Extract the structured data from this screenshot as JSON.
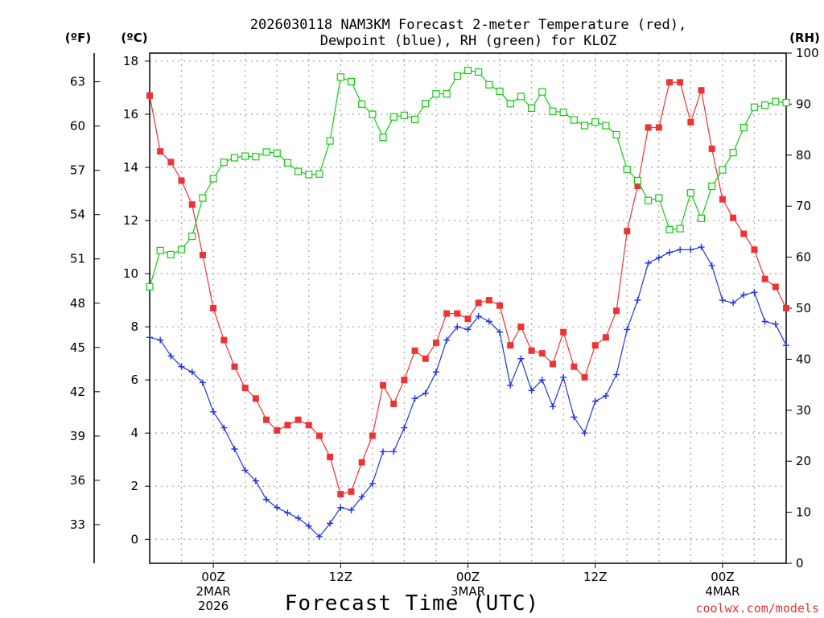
{
  "chart_data": {
    "type": "line",
    "title_line1": "2026030118 NAM3KM Forecast 2-meter Temperature (red),",
    "title_line2": "Dewpoint (blue), RH (green) for KLOZ",
    "unit_f": "(ºF)",
    "unit_c": "(ºC)",
    "unit_rh": "(RH)",
    "xlabel": "Forecast Time (UTC)",
    "credit": "coolwx.com/models",
    "x_hours_range": [
      0,
      60
    ],
    "y_celsius_range": [
      -0.9,
      18.3
    ],
    "y_rh_range": [
      0,
      100
    ],
    "y_left_c_ticks": [
      "0",
      "2",
      "4",
      "6",
      "8",
      "10",
      "12",
      "14",
      "16",
      "18"
    ],
    "y_left_f_ticks": [
      "33",
      "36",
      "39",
      "42",
      "45",
      "48",
      "51",
      "54",
      "57",
      "60",
      "63"
    ],
    "y_right_rh_ticks": [
      "0",
      "10",
      "20",
      "30",
      "40",
      "50",
      "60",
      "70",
      "80",
      "90",
      "100"
    ],
    "x_ticks": [
      {
        "hour": 6,
        "label": "00Z",
        "sub1": "2MAR",
        "sub2": "2026"
      },
      {
        "hour": 18,
        "label": "12Z",
        "sub1": "",
        "sub2": ""
      },
      {
        "hour": 30,
        "label": "00Z",
        "sub1": "3MAR",
        "sub2": ""
      },
      {
        "hour": 42,
        "label": "12Z",
        "sub1": "",
        "sub2": ""
      },
      {
        "hour": 54,
        "label": "00Z",
        "sub1": "4MAR",
        "sub2": ""
      }
    ],
    "colors": {
      "temperature": "#ee3333",
      "dewpoint": "#2233dd",
      "rh": "#11cc11",
      "grid": "#aaaaaa"
    },
    "series": [
      {
        "name": "Temperature (red)",
        "unit": "C",
        "marker": "square-filled",
        "values": [
          16.7,
          14.6,
          14.2,
          13.5,
          12.6,
          10.7,
          8.7,
          7.5,
          6.5,
          5.7,
          5.3,
          4.5,
          4.1,
          4.3,
          4.5,
          4.3,
          3.9,
          3.1,
          1.7,
          1.8,
          2.9,
          3.9,
          5.8,
          5.1,
          6.0,
          7.1,
          6.8,
          7.4,
          8.5,
          8.5,
          8.3,
          8.9,
          9.0,
          8.8,
          7.3,
          8.0,
          7.1,
          7.0,
          6.6,
          7.8,
          6.5,
          6.1,
          7.3,
          7.6,
          8.6,
          11.6,
          13.3,
          15.5,
          15.5,
          17.2,
          17.2,
          15.7,
          16.9,
          14.7,
          12.8,
          12.1,
          11.5,
          10.9,
          9.8,
          9.5,
          8.7
        ]
      },
      {
        "name": "Dewpoint (blue)",
        "unit": "C",
        "marker": "plus",
        "values": [
          7.6,
          7.5,
          6.9,
          6.5,
          6.3,
          5.9,
          4.8,
          4.2,
          3.4,
          2.6,
          2.2,
          1.5,
          1.2,
          1.0,
          0.8,
          0.5,
          0.1,
          0.6,
          1.2,
          1.1,
          1.6,
          2.1,
          3.3,
          3.3,
          4.2,
          5.3,
          5.5,
          6.3,
          7.5,
          8.0,
          7.9,
          8.4,
          8.2,
          7.8,
          5.8,
          6.8,
          5.6,
          6.0,
          5.0,
          6.1,
          4.6,
          4.0,
          5.2,
          5.4,
          6.2,
          7.9,
          9.0,
          10.4,
          10.6,
          10.8,
          10.9,
          10.9,
          11.0,
          10.3,
          9.0,
          8.9,
          9.2,
          9.3,
          8.2,
          8.1,
          7.3
        ]
      },
      {
        "name": "RH (green)",
        "unit": "%",
        "marker": "square-open",
        "values": [
          54.2,
          61.3,
          60.5,
          61.5,
          64.1,
          71.6,
          75.4,
          78.6,
          79.5,
          79.8,
          79.7,
          80.6,
          80.4,
          78.5,
          76.8,
          76.2,
          76.3,
          82.8,
          95.3,
          94.4,
          90.0,
          88.0,
          83.5,
          87.5,
          87.8,
          87.0,
          90.1,
          92.0,
          92.0,
          95.5,
          96.6,
          96.3,
          93.8,
          92.5,
          90.1,
          91.5,
          89.2,
          92.4,
          88.6,
          88.4,
          86.9,
          85.8,
          86.5,
          85.8,
          84.0,
          77.2,
          75.0,
          71.1,
          71.6,
          65.4,
          65.6,
          72.6,
          67.6,
          73.9,
          77.1,
          80.5,
          85.4,
          89.4,
          89.8,
          90.5,
          90.3
        ]
      }
    ]
  }
}
